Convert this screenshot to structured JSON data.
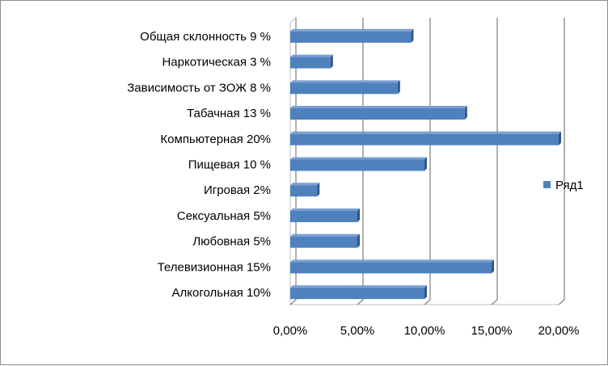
{
  "chart_data": {
    "type": "bar",
    "orientation": "horizontal",
    "categories": [
      "Общая склонность 9 %",
      "Наркотическая 3 %",
      "Зависимость от ЗОЖ 8 %",
      "Табачная 13 %",
      "Компьютерная 20%",
      "Пищевая 10 %",
      "Игровая 2%",
      "Сексуальная 5%",
      "Любовная 5%",
      "Телевизионная 15%",
      "Алкогольная 10%"
    ],
    "series": [
      {
        "name": "Ряд1",
        "values": [
          0.09,
          0.03,
          0.08,
          0.13,
          0.2,
          0.1,
          0.02,
          0.05,
          0.05,
          0.15,
          0.1
        ],
        "color": "#4f81bd"
      }
    ],
    "xlim": [
      0,
      0.2
    ],
    "x_ticks": [
      "0,00%",
      "5,00%",
      "10,00%",
      "15,00%",
      "20,00%"
    ],
    "grid": true,
    "legend_position": "right",
    "colors": {
      "bar": "#4f81bd",
      "bar_top": "#7aa0d4",
      "bar_side": "#2f5688",
      "grid": "#868686",
      "wall": "#bfbfbf"
    }
  }
}
